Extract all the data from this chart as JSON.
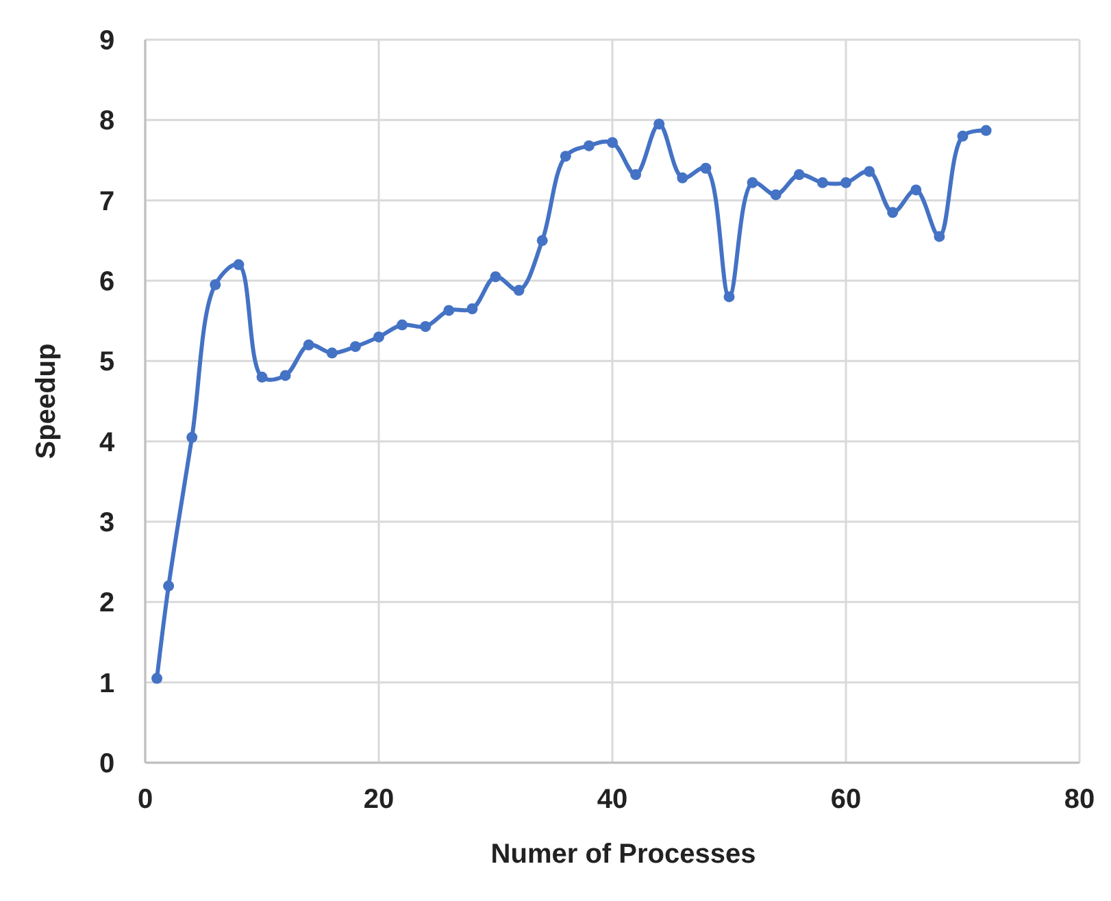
{
  "chart_data": {
    "type": "line",
    "xlabel": "Numer of Processes",
    "ylabel": "Speedup",
    "x": [
      1,
      2,
      4,
      6,
      8,
      10,
      12,
      14,
      16,
      18,
      20,
      22,
      24,
      26,
      28,
      30,
      32,
      34,
      36,
      38,
      40,
      42,
      44,
      46,
      48,
      50,
      52,
      54,
      56,
      58,
      60,
      62,
      64,
      66,
      68,
      70,
      72
    ],
    "series": [
      {
        "color": "#4472c4",
        "values": [
          1.05,
          2.2,
          4.05,
          5.95,
          6.2,
          4.8,
          4.82,
          5.2,
          5.1,
          5.18,
          5.3,
          5.45,
          5.43,
          5.63,
          5.65,
          6.05,
          5.88,
          6.5,
          7.55,
          7.68,
          7.72,
          7.32,
          7.95,
          7.28,
          7.4,
          5.8,
          7.22,
          7.07,
          7.32,
          7.22,
          7.22,
          7.36,
          6.85,
          7.13,
          6.55,
          7.8,
          7.87
        ]
      }
    ],
    "xlim": [
      0,
      80
    ],
    "xticks": [
      0,
      20,
      40,
      60,
      80
    ],
    "ylim": [
      0,
      9
    ],
    "yticks": [
      0,
      1,
      2,
      3,
      4,
      5,
      6,
      7,
      8,
      9
    ],
    "grid": true,
    "marker": "circle",
    "line_style": "solid"
  }
}
